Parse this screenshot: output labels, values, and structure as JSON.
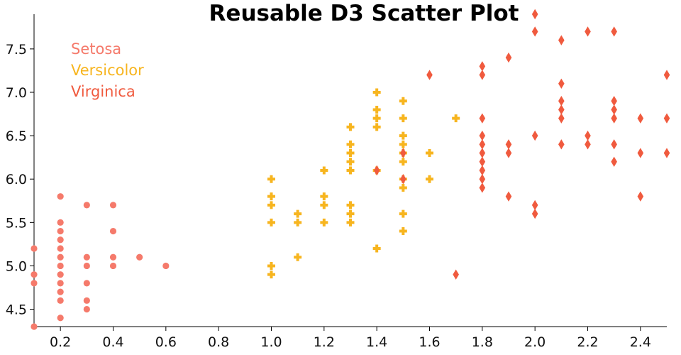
{
  "chart_data": {
    "type": "scatter",
    "title": "Reusable D3 Scatter Plot",
    "xlabel": "",
    "ylabel": "",
    "xlim": [
      0.1,
      2.5
    ],
    "ylim": [
      4.3,
      7.9
    ],
    "xticks": [
      "0.2",
      "0.4",
      "0.6",
      "0.8",
      "1.0",
      "1.2",
      "1.4",
      "1.6",
      "1.8",
      "2.0",
      "2.2",
      "2.4"
    ],
    "yticks": [
      "4.5",
      "5.0",
      "5.5",
      "6.0",
      "6.5",
      "7.0",
      "7.5"
    ],
    "grid": false,
    "legend_position": "top-left",
    "series": [
      {
        "name": "Setosa",
        "color": "#f57a6b",
        "marker": "circle",
        "points": [
          [
            0.1,
            5.2
          ],
          [
            0.1,
            4.9
          ],
          [
            0.1,
            4.8
          ],
          [
            0.1,
            4.3
          ],
          [
            0.2,
            5.8
          ],
          [
            0.2,
            5.5
          ],
          [
            0.2,
            5.4
          ],
          [
            0.2,
            5.3
          ],
          [
            0.2,
            5.2
          ],
          [
            0.2,
            5.1
          ],
          [
            0.2,
            5.0
          ],
          [
            0.2,
            4.9
          ],
          [
            0.2,
            4.8
          ],
          [
            0.2,
            4.7
          ],
          [
            0.2,
            4.6
          ],
          [
            0.2,
            4.4
          ],
          [
            0.3,
            5.7
          ],
          [
            0.3,
            5.1
          ],
          [
            0.3,
            5.0
          ],
          [
            0.3,
            4.8
          ],
          [
            0.3,
            4.6
          ],
          [
            0.3,
            4.5
          ],
          [
            0.4,
            5.7
          ],
          [
            0.4,
            5.4
          ],
          [
            0.4,
            5.1
          ],
          [
            0.4,
            5.0
          ],
          [
            0.5,
            5.1
          ],
          [
            0.6,
            5.0
          ]
        ]
      },
      {
        "name": "Versicolor",
        "color": "#f7b51f",
        "marker": "cross",
        "points": [
          [
            1.0,
            6.0
          ],
          [
            1.0,
            5.8
          ],
          [
            1.0,
            5.7
          ],
          [
            1.0,
            5.5
          ],
          [
            1.0,
            5.0
          ],
          [
            1.0,
            4.9
          ],
          [
            1.1,
            5.6
          ],
          [
            1.1,
            5.5
          ],
          [
            1.1,
            5.1
          ],
          [
            1.2,
            6.1
          ],
          [
            1.2,
            5.8
          ],
          [
            1.2,
            5.7
          ],
          [
            1.2,
            5.5
          ],
          [
            1.3,
            6.6
          ],
          [
            1.3,
            6.4
          ],
          [
            1.3,
            6.3
          ],
          [
            1.3,
            6.2
          ],
          [
            1.3,
            6.1
          ],
          [
            1.3,
            5.7
          ],
          [
            1.3,
            5.6
          ],
          [
            1.3,
            5.5
          ],
          [
            1.4,
            7.0
          ],
          [
            1.4,
            6.8
          ],
          [
            1.4,
            6.7
          ],
          [
            1.4,
            6.6
          ],
          [
            1.4,
            6.1
          ],
          [
            1.4,
            5.2
          ],
          [
            1.5,
            6.9
          ],
          [
            1.5,
            6.7
          ],
          [
            1.5,
            6.5
          ],
          [
            1.5,
            6.4
          ],
          [
            1.5,
            6.3
          ],
          [
            1.5,
            6.2
          ],
          [
            1.5,
            6.0
          ],
          [
            1.5,
            5.9
          ],
          [
            1.5,
            5.6
          ],
          [
            1.5,
            5.4
          ],
          [
            1.6,
            6.3
          ],
          [
            1.6,
            6.0
          ],
          [
            1.7,
            6.7
          ]
        ]
      },
      {
        "name": "Virginica",
        "color": "#f05a3e",
        "marker": "diamond",
        "points": [
          [
            1.4,
            6.1
          ],
          [
            1.5,
            6.3
          ],
          [
            1.5,
            6.0
          ],
          [
            1.6,
            7.2
          ],
          [
            1.7,
            4.9
          ],
          [
            1.8,
            7.3
          ],
          [
            1.8,
            7.2
          ],
          [
            1.8,
            6.7
          ],
          [
            1.8,
            6.5
          ],
          [
            1.8,
            6.4
          ],
          [
            1.8,
            6.3
          ],
          [
            1.8,
            6.2
          ],
          [
            1.8,
            6.1
          ],
          [
            1.8,
            6.0
          ],
          [
            1.8,
            5.9
          ],
          [
            1.9,
            7.4
          ],
          [
            1.9,
            6.4
          ],
          [
            1.9,
            6.3
          ],
          [
            1.9,
            5.8
          ],
          [
            2.0,
            7.9
          ],
          [
            2.0,
            7.7
          ],
          [
            2.0,
            6.5
          ],
          [
            2.0,
            5.7
          ],
          [
            2.0,
            5.6
          ],
          [
            2.1,
            7.6
          ],
          [
            2.1,
            7.1
          ],
          [
            2.1,
            6.9
          ],
          [
            2.1,
            6.8
          ],
          [
            2.1,
            6.7
          ],
          [
            2.1,
            6.4
          ],
          [
            2.2,
            7.7
          ],
          [
            2.2,
            6.5
          ],
          [
            2.2,
            6.4
          ],
          [
            2.3,
            7.7
          ],
          [
            2.3,
            6.9
          ],
          [
            2.3,
            6.8
          ],
          [
            2.3,
            6.7
          ],
          [
            2.3,
            6.4
          ],
          [
            2.3,
            6.2
          ],
          [
            2.4,
            6.7
          ],
          [
            2.4,
            6.3
          ],
          [
            2.4,
            5.8
          ],
          [
            2.5,
            7.2
          ],
          [
            2.5,
            6.7
          ],
          [
            2.5,
            6.3
          ]
        ]
      }
    ]
  }
}
